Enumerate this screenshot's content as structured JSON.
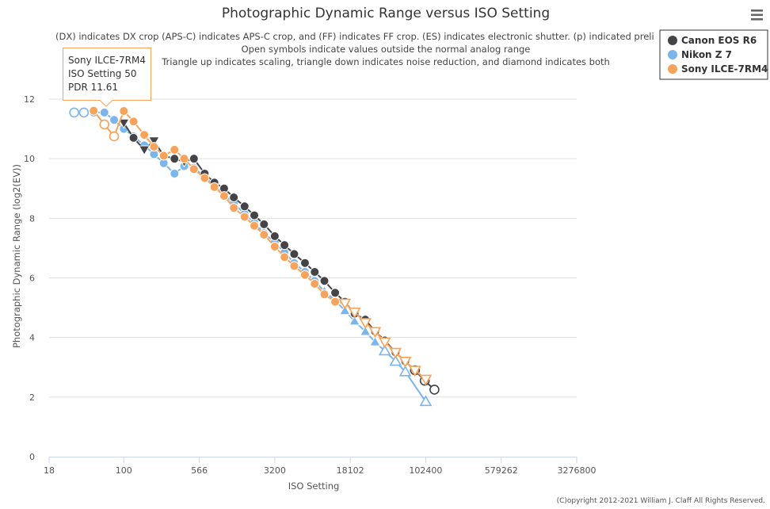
{
  "chart_data": {
    "type": "line",
    "title": "Photographic Dynamic Range versus ISO Setting",
    "subtitle_lines": [
      "(DX) indicates DX crop (APS-C) indicates APS-C crop, and (FF) indicates FF crop. (ES) indicates electronic shutter. (p) indicated preli",
      "Open symbols indicate values outside the normal analog range",
      "Triangle up indicates scaling, triangle down indicates noise reduction, and diamond indicates both"
    ],
    "xlabel": "ISO Setting",
    "ylabel": "Photographic Dynamic Range (log2(EV))",
    "x_scale": "log",
    "x_ticks": [
      18,
      100,
      566,
      3200,
      18102,
      102400,
      579262,
      3276800
    ],
    "y_ticks": [
      0,
      2,
      4,
      6,
      8,
      10,
      12
    ],
    "xlim": [
      18,
      3276800
    ],
    "ylim": [
      0,
      12
    ],
    "grid": "horizontal",
    "legend_position": "top-right",
    "series": [
      {
        "name": "Canon EOS R6",
        "color": "#434348",
        "points": [
          {
            "x": 100,
            "y": 11.2,
            "m": "tri-down"
          },
          {
            "x": 125,
            "y": 10.7,
            "m": "circle"
          },
          {
            "x": 160,
            "y": 10.3,
            "m": "tri-down"
          },
          {
            "x": 200,
            "y": 10.6,
            "m": "tri-down"
          },
          {
            "x": 250,
            "y": 10.1,
            "m": "circle"
          },
          {
            "x": 320,
            "y": 10.0,
            "m": "circle"
          },
          {
            "x": 400,
            "y": 9.9,
            "m": "tri-down"
          },
          {
            "x": 500,
            "y": 10.0,
            "m": "circle"
          },
          {
            "x": 640,
            "y": 9.5,
            "m": "circle"
          },
          {
            "x": 800,
            "y": 9.2,
            "m": "circle"
          },
          {
            "x": 1000,
            "y": 9.0,
            "m": "circle"
          },
          {
            "x": 1250,
            "y": 8.7,
            "m": "circle"
          },
          {
            "x": 1600,
            "y": 8.4,
            "m": "circle"
          },
          {
            "x": 2000,
            "y": 8.1,
            "m": "circle"
          },
          {
            "x": 2500,
            "y": 7.8,
            "m": "circle"
          },
          {
            "x": 3200,
            "y": 7.4,
            "m": "circle"
          },
          {
            "x": 4000,
            "y": 7.1,
            "m": "circle"
          },
          {
            "x": 5000,
            "y": 6.8,
            "m": "circle"
          },
          {
            "x": 6400,
            "y": 6.5,
            "m": "circle"
          },
          {
            "x": 8000,
            "y": 6.2,
            "m": "circle"
          },
          {
            "x": 10000,
            "y": 5.9,
            "m": "circle"
          },
          {
            "x": 12800,
            "y": 5.5,
            "m": "circle"
          },
          {
            "x": 16000,
            "y": 5.2,
            "m": "circle"
          },
          {
            "x": 20000,
            "y": 4.8,
            "m": "circle"
          },
          {
            "x": 25600,
            "y": 4.6,
            "m": "circle"
          },
          {
            "x": 32000,
            "y": 4.2,
            "m": "circle"
          },
          {
            "x": 40000,
            "y": 3.9,
            "m": "circle"
          },
          {
            "x": 51200,
            "y": 3.5,
            "m": "circle"
          },
          {
            "x": 64000,
            "y": 3.2,
            "m": "circle"
          },
          {
            "x": 80000,
            "y": 2.9,
            "m": "open-circle"
          },
          {
            "x": 100000,
            "y": 2.55,
            "m": "open-circle"
          },
          {
            "x": 125000,
            "y": 2.25,
            "m": "open-circle"
          }
        ]
      },
      {
        "name": "Nikon Z 7",
        "color": "#7cb5ec",
        "points": [
          {
            "x": 32,
            "y": 11.55,
            "m": "open-circle"
          },
          {
            "x": 40,
            "y": 11.55,
            "m": "open-circle"
          },
          {
            "x": 50,
            "y": 11.55,
            "m": "circle"
          },
          {
            "x": 64,
            "y": 11.55,
            "m": "circle"
          },
          {
            "x": 80,
            "y": 11.3,
            "m": "circle"
          },
          {
            "x": 100,
            "y": 11.0,
            "m": "circle"
          },
          {
            "x": 125,
            "y": 10.75,
            "m": "circle"
          },
          {
            "x": 160,
            "y": 10.45,
            "m": "circle"
          },
          {
            "x": 200,
            "y": 10.15,
            "m": "circle"
          },
          {
            "x": 250,
            "y": 9.85,
            "m": "circle"
          },
          {
            "x": 320,
            "y": 9.5,
            "m": "circle"
          },
          {
            "x": 400,
            "y": 9.75,
            "m": "circle"
          },
          {
            "x": 500,
            "y": 9.7,
            "m": "circle"
          },
          {
            "x": 640,
            "y": 9.4,
            "m": "circle"
          },
          {
            "x": 800,
            "y": 9.1,
            "m": "circle"
          },
          {
            "x": 1000,
            "y": 8.8,
            "m": "circle"
          },
          {
            "x": 1250,
            "y": 8.5,
            "m": "circle"
          },
          {
            "x": 1600,
            "y": 8.15,
            "m": "circle"
          },
          {
            "x": 2000,
            "y": 7.85,
            "m": "circle"
          },
          {
            "x": 2500,
            "y": 7.5,
            "m": "circle"
          },
          {
            "x": 3200,
            "y": 7.2,
            "m": "circle"
          },
          {
            "x": 4000,
            "y": 6.85,
            "m": "circle"
          },
          {
            "x": 5000,
            "y": 6.5,
            "m": "circle"
          },
          {
            "x": 6400,
            "y": 6.2,
            "m": "circle"
          },
          {
            "x": 8000,
            "y": 5.9,
            "m": "circle"
          },
          {
            "x": 10000,
            "y": 5.55,
            "m": "tri-up"
          },
          {
            "x": 12800,
            "y": 5.25,
            "m": "tri-up"
          },
          {
            "x": 16000,
            "y": 4.9,
            "m": "tri-up"
          },
          {
            "x": 20000,
            "y": 4.55,
            "m": "tri-up"
          },
          {
            "x": 25600,
            "y": 4.2,
            "m": "tri-up"
          },
          {
            "x": 32000,
            "y": 3.85,
            "m": "tri-up"
          },
          {
            "x": 40000,
            "y": 3.55,
            "m": "open-tri-up"
          },
          {
            "x": 51200,
            "y": 3.2,
            "m": "open-tri-up"
          },
          {
            "x": 64000,
            "y": 2.85,
            "m": "open-tri-up"
          },
          {
            "x": 102400,
            "y": 1.85,
            "m": "open-tri-up"
          }
        ]
      },
      {
        "name": "Sony ILCE-7RM4",
        "color": "#f7a35c",
        "points": [
          {
            "x": 50,
            "y": 11.61,
            "m": "circle"
          },
          {
            "x": 64,
            "y": 11.15,
            "m": "open-circle"
          },
          {
            "x": 80,
            "y": 10.75,
            "m": "open-circle"
          },
          {
            "x": 100,
            "y": 11.6,
            "m": "circle"
          },
          {
            "x": 125,
            "y": 11.25,
            "m": "circle"
          },
          {
            "x": 160,
            "y": 10.8,
            "m": "circle"
          },
          {
            "x": 200,
            "y": 10.4,
            "m": "circle"
          },
          {
            "x": 250,
            "y": 10.1,
            "m": "circle"
          },
          {
            "x": 320,
            "y": 10.3,
            "m": "circle"
          },
          {
            "x": 400,
            "y": 10.0,
            "m": "circle"
          },
          {
            "x": 500,
            "y": 9.65,
            "m": "circle"
          },
          {
            "x": 640,
            "y": 9.35,
            "m": "circle"
          },
          {
            "x": 800,
            "y": 9.05,
            "m": "circle"
          },
          {
            "x": 1000,
            "y": 8.75,
            "m": "circle"
          },
          {
            "x": 1250,
            "y": 8.35,
            "m": "circle"
          },
          {
            "x": 1600,
            "y": 8.05,
            "m": "circle"
          },
          {
            "x": 2000,
            "y": 7.75,
            "m": "circle"
          },
          {
            "x": 2500,
            "y": 7.45,
            "m": "circle"
          },
          {
            "x": 3200,
            "y": 7.05,
            "m": "circle"
          },
          {
            "x": 4000,
            "y": 6.7,
            "m": "circle"
          },
          {
            "x": 5000,
            "y": 6.4,
            "m": "circle"
          },
          {
            "x": 6400,
            "y": 6.1,
            "m": "circle"
          },
          {
            "x": 8000,
            "y": 5.8,
            "m": "circle"
          },
          {
            "x": 10000,
            "y": 5.45,
            "m": "circle"
          },
          {
            "x": 12800,
            "y": 5.2,
            "m": "circle"
          },
          {
            "x": 16000,
            "y": 5.15,
            "m": "open-tri-down"
          },
          {
            "x": 20000,
            "y": 4.85,
            "m": "open-tri-down"
          },
          {
            "x": 25600,
            "y": 4.5,
            "m": "open-tri-down"
          },
          {
            "x": 32000,
            "y": 4.2,
            "m": "open-tri-down"
          },
          {
            "x": 40000,
            "y": 3.85,
            "m": "open-tri-down"
          },
          {
            "x": 51200,
            "y": 3.5,
            "m": "open-tri-down"
          },
          {
            "x": 64000,
            "y": 3.2,
            "m": "open-tri-down"
          },
          {
            "x": 80000,
            "y": 2.9,
            "m": "open-tri-down"
          },
          {
            "x": 102400,
            "y": 2.6,
            "m": "open-tri-down"
          }
        ]
      }
    ]
  },
  "tooltip": {
    "series": "Sony ILCE-7RM4",
    "line2": "ISO Setting 50",
    "line3": "PDR 11.61",
    "color": "#f7a35c"
  },
  "menu_icon": "hamburger-menu-icon",
  "copyright": "(C)opyright 2012-2021 William J. Claff All Rights Reserved."
}
